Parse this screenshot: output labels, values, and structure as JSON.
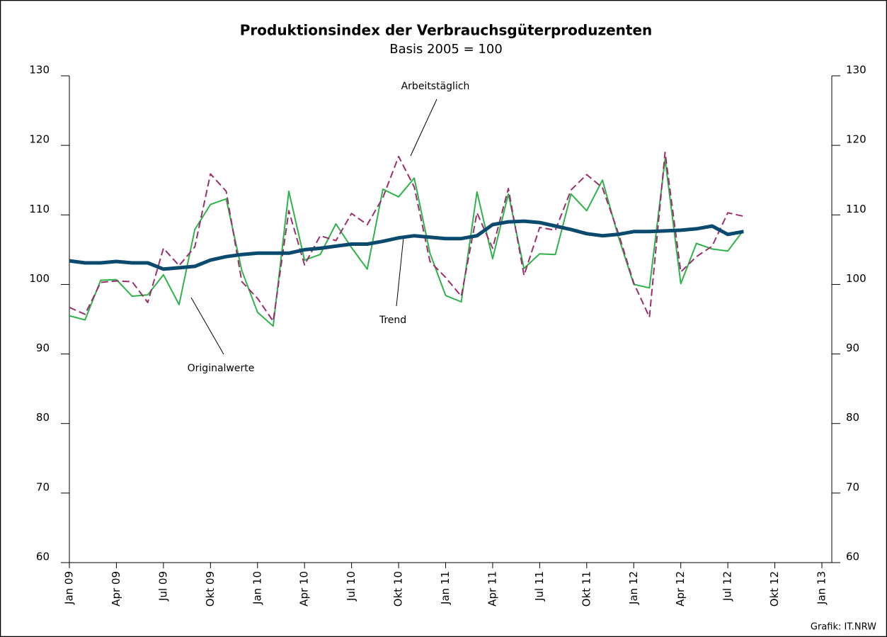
{
  "chart_data": {
    "type": "line",
    "title": "Produktionsindex der Verbrauchsgüterproduzenten",
    "subtitle": "Basis 2005 = 100",
    "source": "Grafik: IT.NRW",
    "annotations": [
      "Arbeitstäglich",
      "Trend",
      "Originalwerte"
    ],
    "categories": [
      "Jan 09",
      null,
      null,
      "Apr 09",
      null,
      null,
      "Jul 09",
      null,
      null,
      "Okt 09",
      null,
      null,
      "Jan 10",
      null,
      null,
      "Apr 10",
      null,
      null,
      "Jul 10",
      null,
      null,
      "Okt 10",
      null,
      null,
      "Jan 11",
      null,
      null,
      "Apr 11",
      null,
      null,
      "Jul 11",
      null,
      null,
      "Okt 11",
      null,
      null,
      "Jan 12",
      null,
      null,
      "Apr 12",
      null,
      null,
      "Jul 12",
      null,
      null,
      "Okt 12",
      null,
      null,
      "Jan 13"
    ],
    "series": [
      {
        "name": "Originalwerte",
        "color": "#2db34a",
        "dash": false,
        "width": 2,
        "values": [
          95.5,
          94.9,
          100.6,
          100.7,
          98.3,
          98.5,
          101.4,
          97.1,
          107.9,
          111.5,
          112.3,
          102.0,
          96.0,
          94.0,
          113.4,
          103.5,
          104.3,
          108.7,
          105.3,
          102.2,
          113.7,
          112.6,
          115.3,
          104.5,
          98.4,
          97.5,
          113.3,
          103.7,
          113.0,
          102.3,
          104.4,
          104.3,
          113.0,
          110.6,
          115.0,
          107.0,
          100.0,
          99.5,
          118.0,
          100.1,
          105.9,
          105.1,
          104.8,
          107.8,
          null,
          null,
          null,
          null,
          null
        ]
      },
      {
        "name": "Arbeitstäglich",
        "color": "#9b2f6e",
        "dash": true,
        "width": 2,
        "values": [
          96.7,
          95.7,
          100.3,
          100.5,
          100.4,
          97.4,
          105.2,
          102.7,
          105.4,
          115.9,
          113.4,
          100.4,
          98.0,
          94.7,
          110.6,
          102.8,
          107.0,
          106.3,
          110.2,
          108.6,
          112.5,
          118.4,
          114.0,
          103.3,
          101.0,
          98.3,
          110.3,
          105.2,
          113.8,
          101.3,
          108.2,
          107.8,
          113.6,
          115.8,
          113.9,
          107.5,
          100.2,
          95.3,
          119.0,
          101.8,
          104.0,
          105.5,
          110.3,
          109.8,
          null,
          null,
          null,
          null,
          null
        ]
      },
      {
        "name": "Trend",
        "color": "#0b4a6f",
        "dash": false,
        "width": 5,
        "values": [
          103.4,
          103.1,
          103.1,
          103.3,
          103.1,
          103.1,
          102.2,
          102.4,
          102.6,
          103.5,
          104.0,
          104.3,
          104.5,
          104.5,
          104.5,
          105.0,
          105.2,
          105.5,
          105.8,
          105.8,
          106.2,
          106.7,
          107.0,
          106.8,
          106.6,
          106.6,
          107.0,
          108.6,
          109.0,
          109.1,
          108.9,
          108.4,
          107.9,
          107.3,
          107.0,
          107.2,
          107.6,
          107.6,
          107.7,
          107.8,
          108.0,
          108.4,
          107.2,
          107.6,
          null,
          null,
          null,
          null,
          null
        ]
      }
    ],
    "ylim": [
      60,
      130
    ],
    "yticks": [
      60,
      70,
      80,
      90,
      100,
      110,
      120,
      130
    ],
    "grid": false
  }
}
